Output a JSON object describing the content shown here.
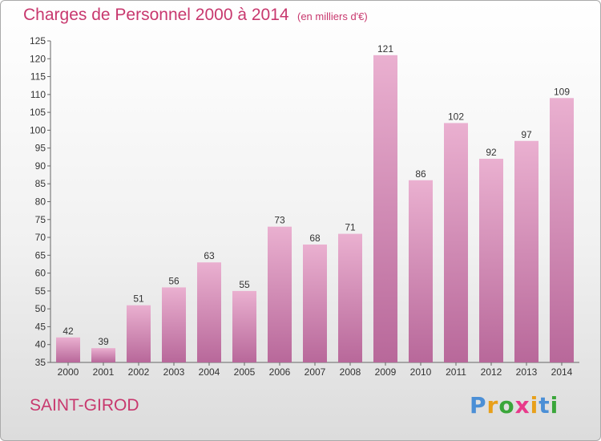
{
  "header": {
    "title": "Charges de Personnel 2000 à 2014",
    "unit": "(en milliers d'€)"
  },
  "footer": {
    "commune": "SAINT-GIROD",
    "logo": {
      "text": "Proxiti",
      "letter_colors": [
        "#4b8fd6",
        "#e8a01a",
        "#3aa63a",
        "#e83a8a",
        "#e8a01a",
        "#4b8fd6",
        "#3aa63a"
      ]
    }
  },
  "colors": {
    "bar_light": "#eab0d0",
    "bar_dark": "#b8689a",
    "accent": "#c8386e"
  },
  "chart_data": {
    "type": "bar",
    "categories": [
      "2000",
      "2001",
      "2002",
      "2003",
      "2004",
      "2005",
      "2006",
      "2007",
      "2008",
      "2009",
      "2010",
      "2011",
      "2012",
      "2013",
      "2014"
    ],
    "values": [
      42,
      39,
      51,
      56,
      63,
      55,
      73,
      68,
      71,
      121,
      86,
      102,
      92,
      97,
      109
    ],
    "title": "Charges de Personnel 2000 à 2014",
    "subtitle": "(en milliers d'€)",
    "ylim": [
      35,
      125
    ],
    "yticks": [
      35,
      40,
      45,
      50,
      55,
      60,
      65,
      70,
      75,
      80,
      85,
      90,
      95,
      100,
      105,
      110,
      115,
      120,
      125
    ],
    "grid": false,
    "data_labels": true
  }
}
